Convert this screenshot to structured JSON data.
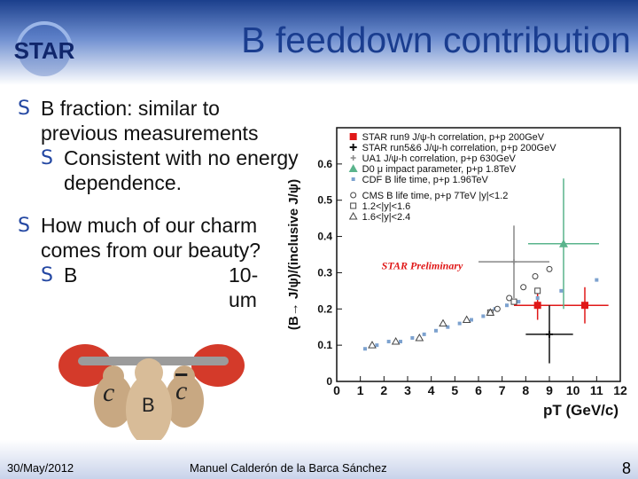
{
  "slide": {
    "title": "B feeddown contribution",
    "bullets": [
      {
        "level": 1,
        "text": "B fraction: similar to previous measurements"
      },
      {
        "level": 2,
        "text": "Consistent with no energy dependence."
      },
      {
        "level": 1,
        "text": "How much of our charm comes from our beauty?"
      },
      {
        "level": 2,
        "text": "B"
      },
      {
        "level": 2,
        "text": "10-"
      },
      {
        "level": 2,
        "text": "um"
      }
    ],
    "cartoon_labels": {
      "c": "c",
      "b": "B",
      "cbar": "c"
    },
    "footer": {
      "date": "30/May/2012",
      "author": "Manuel Calderón de la Barca Sánchez",
      "page": "8"
    }
  },
  "chart_data": {
    "type": "scatter",
    "ylabel": "(B→ J/ψ)/(inclusive J/ψ)",
    "xlabel": "pT (GeV/c)",
    "xlim": [
      0,
      12
    ],
    "ylim": [
      0,
      0.7
    ],
    "xticks": [
      0,
      1,
      2,
      3,
      4,
      5,
      6,
      7,
      8,
      9,
      10,
      11,
      12
    ],
    "yticks": [
      0,
      0.1,
      0.2,
      0.3,
      0.4,
      0.5,
      0.6
    ],
    "annotation": "STAR Preliminary",
    "legend_position": "top-right",
    "series": [
      {
        "name": "STAR run9 J/ψ-h correlation, p+p 200GeV",
        "color": "#e01818",
        "marker": "square",
        "points": [
          {
            "x": 8.5,
            "y": 0.21,
            "xerr": 1.0,
            "yerr": 0.04
          },
          {
            "x": 10.5,
            "y": 0.21,
            "xerr": 1.0,
            "yerr": 0.05
          }
        ]
      },
      {
        "name": "STAR run5&6 J/ψ-h correlation, p+p 200GeV",
        "color": "#111111",
        "marker": "star",
        "points": [
          {
            "x": 9.0,
            "y": 0.13,
            "xerr": 1.0,
            "yerr": 0.08
          }
        ]
      },
      {
        "name": "UA1 J/ψ-h correlation, p+p 630GeV",
        "color": "#888888",
        "marker": "plus",
        "points": [
          {
            "x": 7.5,
            "y": 0.33,
            "xerr": 1.5,
            "yerr": 0.1
          }
        ]
      },
      {
        "name": "D0 μ impact parameter, p+p 1.8TeV",
        "color": "#5ab48c",
        "marker": "triangle",
        "points": [
          {
            "x": 9.6,
            "y": 0.38,
            "xerr": 1.5,
            "yerr": 0.18
          }
        ]
      },
      {
        "name": "CDF B life time, p+p 1.96TeV",
        "color": "#7da2cf",
        "marker": "square-small",
        "points": [
          {
            "x": 1.2,
            "y": 0.09
          },
          {
            "x": 1.7,
            "y": 0.1
          },
          {
            "x": 2.2,
            "y": 0.11
          },
          {
            "x": 2.7,
            "y": 0.11
          },
          {
            "x": 3.2,
            "y": 0.12
          },
          {
            "x": 3.7,
            "y": 0.13
          },
          {
            "x": 4.2,
            "y": 0.14
          },
          {
            "x": 4.7,
            "y": 0.15
          },
          {
            "x": 5.2,
            "y": 0.16
          },
          {
            "x": 5.7,
            "y": 0.17
          },
          {
            "x": 6.2,
            "y": 0.18
          },
          {
            "x": 6.7,
            "y": 0.2
          },
          {
            "x": 7.2,
            "y": 0.21
          },
          {
            "x": 7.7,
            "y": 0.22
          },
          {
            "x": 8.5,
            "y": 0.23
          },
          {
            "x": 9.5,
            "y": 0.25
          },
          {
            "x": 11.0,
            "y": 0.28
          }
        ]
      },
      {
        "name": "CMS B life time, p+p 7TeV |y|<1.2",
        "color": "#444444",
        "marker": "circle-open",
        "points": [
          {
            "x": 6.8,
            "y": 0.2
          },
          {
            "x": 7.3,
            "y": 0.23
          },
          {
            "x": 7.9,
            "y": 0.26
          },
          {
            "x": 8.4,
            "y": 0.29
          },
          {
            "x": 9.0,
            "y": 0.31
          }
        ]
      },
      {
        "name": "1.2<|y|<1.6",
        "color": "#444444",
        "marker": "square-open",
        "points": [
          {
            "x": 6.5,
            "y": 0.19
          },
          {
            "x": 7.5,
            "y": 0.22
          },
          {
            "x": 8.5,
            "y": 0.25
          }
        ]
      },
      {
        "name": "1.6<|y|<2.4",
        "color": "#444444",
        "marker": "triangle-open",
        "points": [
          {
            "x": 1.5,
            "y": 0.1
          },
          {
            "x": 2.5,
            "y": 0.11
          },
          {
            "x": 3.5,
            "y": 0.12
          },
          {
            "x": 4.5,
            "y": 0.16
          },
          {
            "x": 5.5,
            "y": 0.17
          },
          {
            "x": 6.5,
            "y": 0.19
          }
        ]
      }
    ]
  }
}
